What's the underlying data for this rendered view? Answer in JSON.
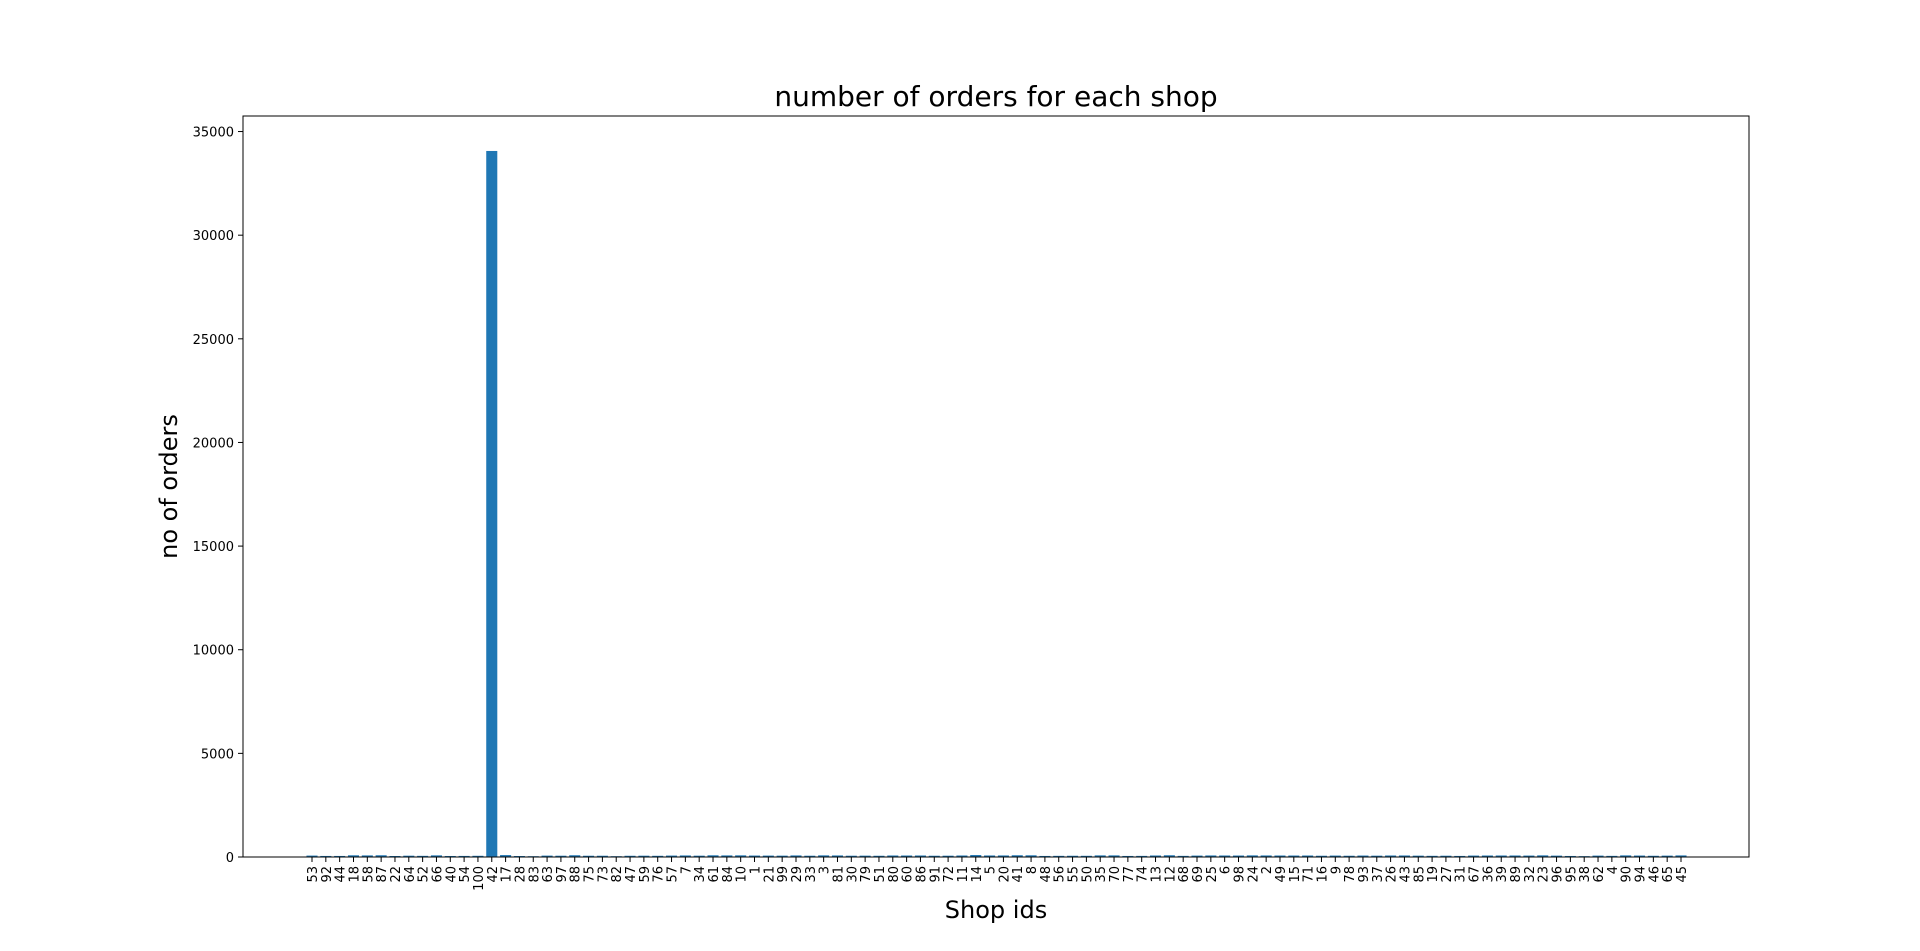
{
  "chart_data": {
    "type": "bar",
    "title": "number of orders for each shop",
    "xlabel": "Shop ids",
    "ylabel": "no of orders",
    "ylim": [
      0,
      35750
    ],
    "yticks": [
      0,
      5000,
      10000,
      15000,
      20000,
      25000,
      30000,
      35000
    ],
    "categories": [
      "53",
      "92",
      "44",
      "18",
      "58",
      "87",
      "22",
      "64",
      "52",
      "66",
      "40",
      "54",
      "100",
      "42",
      "17",
      "28",
      "83",
      "63",
      "97",
      "88",
      "75",
      "73",
      "82",
      "47",
      "59",
      "76",
      "57",
      "7",
      "34",
      "61",
      "84",
      "10",
      "1",
      "21",
      "99",
      "29",
      "33",
      "3",
      "81",
      "30",
      "79",
      "51",
      "80",
      "60",
      "86",
      "91",
      "72",
      "11",
      "14",
      "5",
      "20",
      "41",
      "8",
      "48",
      "56",
      "55",
      "50",
      "35",
      "70",
      "77",
      "74",
      "13",
      "12",
      "68",
      "69",
      "25",
      "6",
      "98",
      "24",
      "2",
      "49",
      "15",
      "71",
      "16",
      "9",
      "78",
      "93",
      "37",
      "26",
      "43",
      "85",
      "19",
      "27",
      "31",
      "67",
      "36",
      "39",
      "89",
      "32",
      "23",
      "96",
      "95",
      "38",
      "62",
      "4",
      "90",
      "94",
      "46",
      "65",
      "45"
    ],
    "values": [
      68,
      51,
      51,
      82,
      77,
      84,
      48,
      63,
      56,
      79,
      49,
      52,
      58,
      34063,
      93,
      47,
      39,
      67,
      62,
      85,
      61,
      61,
      39,
      59,
      63,
      58,
      69,
      75,
      64,
      82,
      77,
      80,
      70,
      68,
      65,
      76,
      62,
      79,
      75,
      62,
      65,
      60,
      73,
      72,
      73,
      61,
      63,
      73,
      95,
      74,
      75,
      84,
      82,
      51,
      56,
      60,
      58,
      78,
      78,
      51,
      54,
      73,
      84,
      55,
      68,
      75,
      73,
      71,
      78,
      75,
      72,
      71,
      72,
      61,
      69,
      61,
      70,
      64,
      73,
      74,
      65,
      57,
      62,
      52,
      69,
      72,
      73,
      73,
      69,
      79,
      66,
      50,
      41,
      67,
      55,
      78,
      70,
      59,
      66,
      77
    ],
    "bar_color": "#1f77b4",
    "grid": false,
    "legend": "none"
  }
}
